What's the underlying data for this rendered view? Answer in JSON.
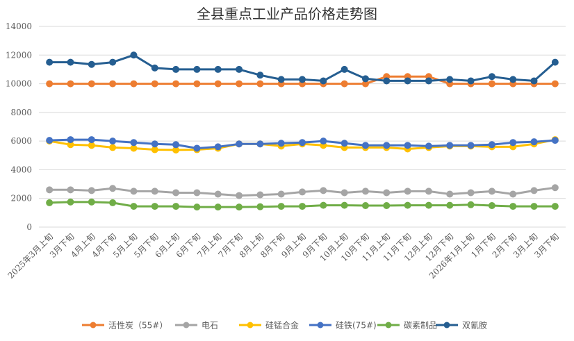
{
  "chart_data": {
    "type": "line",
    "title": "全县重点工业产品价格走势图",
    "xlabel": "",
    "ylabel": "",
    "ylim": [
      0,
      14000
    ],
    "yticks": [
      0,
      2000,
      4000,
      6000,
      8000,
      10000,
      12000,
      14000
    ],
    "grid": true,
    "legend_position": "bottom",
    "categories": [
      "2025年3月上旬",
      "3月下旬",
      "4月上旬",
      "4月下旬",
      "5月上旬",
      "5月下旬",
      "6月上旬",
      "6月下旬",
      "7月上旬",
      "7月下旬",
      "8月上旬",
      "8月下旬",
      "9月上旬",
      "9月下旬",
      "10月上旬",
      "10月下旬",
      "11月上旬",
      "11月下旬",
      "12月上旬",
      "12月下旬",
      "2026年1月上旬",
      "1月下旬",
      "2月下旬",
      "3月上旬",
      "3月下旬"
    ],
    "series": [
      {
        "name": "活性炭（55#）",
        "color": "#ED7D31",
        "values": [
          10000,
          10000,
          10000,
          10000,
          10000,
          10000,
          10000,
          10000,
          10000,
          10000,
          10000,
          10000,
          10000,
          10000,
          10000,
          10000,
          10500,
          10500,
          10500,
          10000,
          10000,
          10000,
          10000,
          10000,
          10000
        ]
      },
      {
        "name": "电石",
        "color": "#A5A5A5",
        "values": [
          2600,
          2600,
          2550,
          2700,
          2500,
          2500,
          2400,
          2400,
          2300,
          2200,
          2250,
          2300,
          2450,
          2550,
          2400,
          2500,
          2400,
          2500,
          2500,
          2300,
          2400,
          2500,
          2300,
          2550,
          2750
        ]
      },
      {
        "name": "硅锰合金",
        "color": "#FFC000",
        "values": [
          6000,
          5750,
          5700,
          5550,
          5500,
          5400,
          5380,
          5400,
          5500,
          5800,
          5800,
          5650,
          5800,
          5700,
          5550,
          5550,
          5550,
          5450,
          5550,
          5650,
          5650,
          5600,
          5600,
          5800,
          6100
        ]
      },
      {
        "name": "硅铁(75#)",
        "color": "#4472C4",
        "values": [
          6050,
          6100,
          6100,
          6000,
          5900,
          5800,
          5750,
          5500,
          5600,
          5800,
          5800,
          5850,
          5900,
          6000,
          5850,
          5700,
          5700,
          5700,
          5650,
          5700,
          5700,
          5750,
          5900,
          5950,
          6050
        ]
      },
      {
        "name": "碳素制品",
        "color": "#70AD47",
        "values": [
          1700,
          1750,
          1750,
          1700,
          1450,
          1450,
          1450,
          1400,
          1400,
          1400,
          1420,
          1450,
          1450,
          1520,
          1520,
          1500,
          1500,
          1520,
          1520,
          1520,
          1560,
          1500,
          1450,
          1450,
          1450
        ]
      },
      {
        "name": "双氰胺",
        "color": "#255E91",
        "values": [
          11500,
          11500,
          11350,
          11500,
          12000,
          11100,
          11000,
          11000,
          11000,
          11000,
          10600,
          10300,
          10300,
          10200,
          11000,
          10350,
          10200,
          10200,
          10200,
          10300,
          10200,
          10500,
          10300,
          10200,
          11500
        ]
      }
    ]
  }
}
